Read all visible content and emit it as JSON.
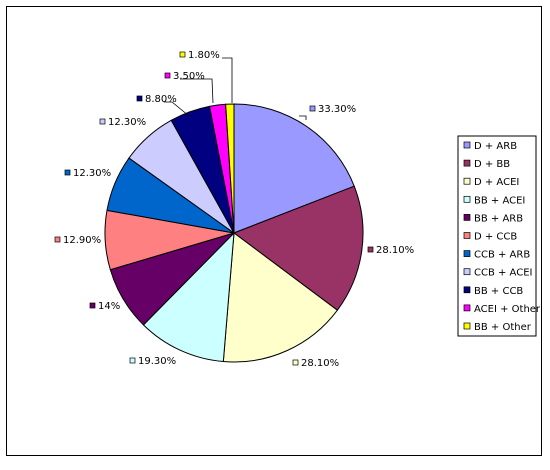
{
  "chart_data": {
    "type": "pie",
    "title": "",
    "legend_position": "right",
    "slices": [
      {
        "label": "D + ARB",
        "value": 33.3,
        "display": "33.30%",
        "color": "#9999FF"
      },
      {
        "label": "D + BB",
        "value": 28.1,
        "display": "28.10%",
        "color": "#993366"
      },
      {
        "label": "D + ACEI",
        "value": 28.1,
        "display": "28.10%",
        "color": "#FFFFCC"
      },
      {
        "label": "BB + ACEI",
        "value": 19.3,
        "display": "19.30%",
        "color": "#CCFFFF"
      },
      {
        "label": "BB + ARB",
        "value": 14,
        "display": "14%",
        "color": "#660066"
      },
      {
        "label": "D + CCB",
        "value": 12.9,
        "display": "12.90%",
        "color": "#FF8080"
      },
      {
        "label": "CCB + ARB",
        "value": 12.3,
        "display": "12.30%",
        "color": "#0066CC"
      },
      {
        "label": "CCB + ACEI",
        "value": 12.3,
        "display": "12.30%",
        "color": "#CCCCFF"
      },
      {
        "label": "BB + CCB",
        "value": 8.8,
        "display": "8.80%",
        "color": "#000080"
      },
      {
        "label": "ACEI + Other",
        "value": 3.5,
        "display": "3.50%",
        "color": "#FF00FF"
      },
      {
        "label": "BB + Other",
        "value": 1.8,
        "display": "1.80%",
        "color": "#FFFF00"
      }
    ]
  }
}
